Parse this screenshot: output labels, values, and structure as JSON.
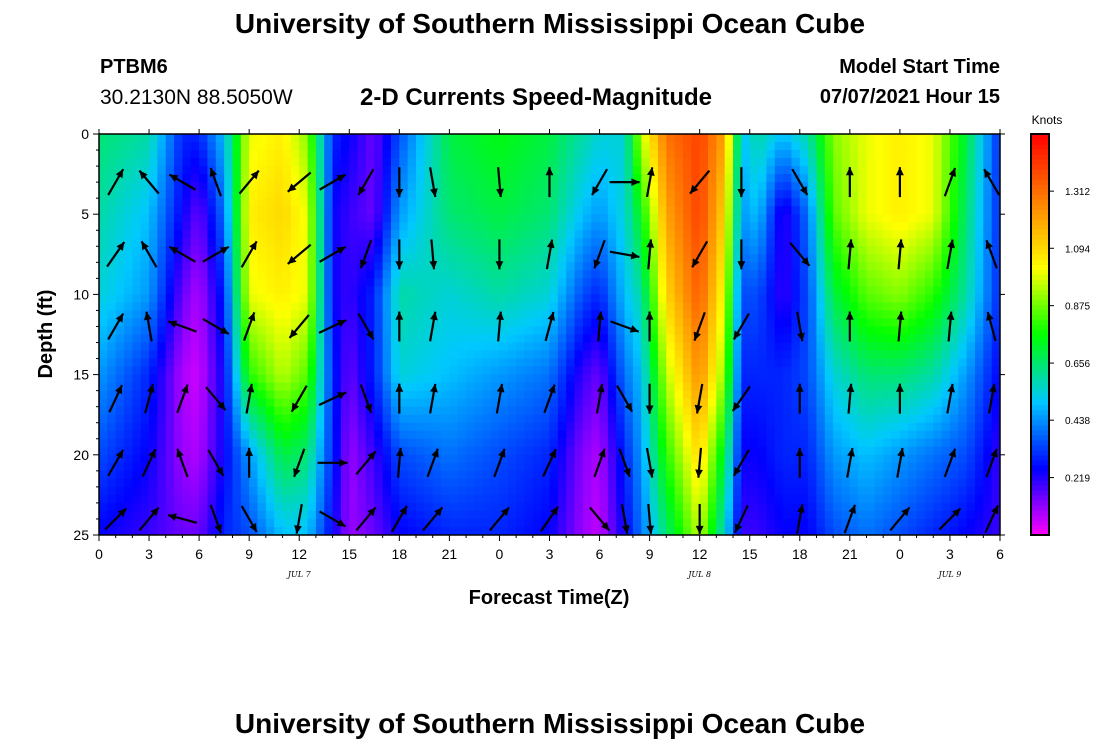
{
  "header": {
    "title": "University of Southern Mississippi Ocean Cube",
    "station_name": "PTBM6",
    "station_coords": "30.2130N  88.5050W",
    "plot_title": "2-D Currents Speed-Magnitude",
    "start_label": "Model Start Time",
    "start_value": "07/07/2021 Hour 15"
  },
  "footer": {
    "title": "University of Southern Mississippi Ocean Cube"
  },
  "chart_data": {
    "type": "heatmap",
    "xlabel": "Forecast Time(Z)",
    "ylabel": "Depth (ft)",
    "xlim": [
      0,
      54
    ],
    "ylim": [
      0,
      25
    ],
    "x_ticks": [
      0,
      3,
      6,
      9,
      12,
      15,
      18,
      21,
      24,
      27,
      30,
      33,
      36,
      39,
      42,
      45,
      48,
      51,
      54
    ],
    "x_tick_labels": [
      "0",
      "3",
      "6",
      "9",
      "12",
      "15",
      "18",
      "21",
      "0",
      "3",
      "6",
      "9",
      "12",
      "15",
      "18",
      "21",
      "0",
      "3",
      "6"
    ],
    "y_ticks": [
      0,
      5,
      10,
      15,
      20,
      25
    ],
    "y_tick_labels": [
      "0",
      "5",
      "10",
      "15",
      "20",
      "25"
    ],
    "day_labels": [
      {
        "x": 12,
        "text": "JUL 7"
      },
      {
        "x": 36,
        "text": "JUL 8"
      },
      {
        "x": 51,
        "text": "JUL 9"
      }
    ],
    "colorbar": {
      "title": "Knots",
      "min": 0,
      "max": 1.53,
      "ticks": [
        0.219,
        0.438,
        0.656,
        0.875,
        1.094,
        1.312
      ],
      "tick_labels": [
        "0.219",
        "0.438",
        "0.656",
        "0.875",
        "1.094",
        "1.312"
      ],
      "colors": [
        "#ff00ff",
        "#0000ff",
        "#00c8ff",
        "#00ff00",
        "#ffff00",
        "#ff8000",
        "#ff0000"
      ]
    },
    "speed_profiles": [
      {
        "x": 0,
        "values": [
          0.65,
          0.6,
          0.55,
          0.45,
          0.35,
          0.25
        ]
      },
      {
        "x": 3,
        "values": [
          0.6,
          0.5,
          0.45,
          0.3,
          0.25,
          0.2
        ]
      },
      {
        "x": 5,
        "values": [
          0.3,
          0.25,
          0.15,
          0.08,
          0.1,
          0.15
        ]
      },
      {
        "x": 6,
        "values": [
          0.3,
          0.15,
          0.08,
          0.05,
          0.08,
          0.15
        ]
      },
      {
        "x": 7.5,
        "values": [
          0.5,
          0.4,
          0.3,
          0.25,
          0.25,
          0.3
        ]
      },
      {
        "x": 9,
        "values": [
          1.0,
          1.05,
          1.0,
          0.8,
          0.45,
          0.35
        ]
      },
      {
        "x": 11,
        "values": [
          1.05,
          1.1,
          1.05,
          0.95,
          0.7,
          0.5
        ]
      },
      {
        "x": 12.5,
        "values": [
          0.9,
          1.0,
          1.0,
          0.85,
          0.65,
          0.5
        ]
      },
      {
        "x": 14,
        "values": [
          0.3,
          0.25,
          0.25,
          0.3,
          0.3,
          0.25
        ]
      },
      {
        "x": 15,
        "values": [
          0.25,
          0.2,
          0.2,
          0.15,
          0.1,
          0.1
        ]
      },
      {
        "x": 16.5,
        "values": [
          0.15,
          0.15,
          0.3,
          0.3,
          0.2,
          0.15
        ]
      },
      {
        "x": 18,
        "values": [
          0.35,
          0.45,
          0.6,
          0.55,
          0.35,
          0.25
        ]
      },
      {
        "x": 21,
        "values": [
          0.7,
          0.65,
          0.55,
          0.5,
          0.4,
          0.3
        ]
      },
      {
        "x": 24,
        "values": [
          0.75,
          0.7,
          0.6,
          0.45,
          0.35,
          0.3
        ]
      },
      {
        "x": 27,
        "values": [
          0.7,
          0.65,
          0.55,
          0.4,
          0.3,
          0.25
        ]
      },
      {
        "x": 29,
        "values": [
          0.6,
          0.5,
          0.35,
          0.2,
          0.12,
          0.1
        ]
      },
      {
        "x": 30,
        "values": [
          0.55,
          0.45,
          0.3,
          0.15,
          0.08,
          0.06
        ]
      },
      {
        "x": 31.5,
        "values": [
          0.55,
          0.55,
          0.5,
          0.4,
          0.3,
          0.25
        ]
      },
      {
        "x": 32.5,
        "values": [
          0.95,
          0.75,
          0.6,
          0.5,
          0.45,
          0.4
        ]
      },
      {
        "x": 34,
        "values": [
          1.3,
          1.2,
          1.1,
          0.95,
          0.8,
          0.65
        ]
      },
      {
        "x": 36,
        "values": [
          1.4,
          1.4,
          1.35,
          1.25,
          1.1,
          0.95
        ]
      },
      {
        "x": 37.5,
        "values": [
          1.2,
          1.1,
          1.0,
          0.9,
          0.7,
          0.55
        ]
      },
      {
        "x": 38.5,
        "values": [
          0.5,
          0.45,
          0.35,
          0.3,
          0.25,
          0.2
        ]
      },
      {
        "x": 39.5,
        "values": [
          0.6,
          0.5,
          0.35,
          0.3,
          0.25,
          0.2
        ]
      },
      {
        "x": 41,
        "values": [
          0.5,
          0.2,
          0.2,
          0.3,
          0.3,
          0.25
        ]
      },
      {
        "x": 42.5,
        "values": [
          0.6,
          0.4,
          0.35,
          0.35,
          0.3,
          0.25
        ]
      },
      {
        "x": 44,
        "values": [
          0.9,
          0.85,
          0.7,
          0.55,
          0.45,
          0.35
        ]
      },
      {
        "x": 46,
        "values": [
          1.0,
          1.0,
          0.85,
          0.65,
          0.5,
          0.4
        ]
      },
      {
        "x": 48,
        "values": [
          1.05,
          1.05,
          0.9,
          0.65,
          0.45,
          0.35
        ]
      },
      {
        "x": 50,
        "values": [
          1.0,
          1.0,
          0.8,
          0.6,
          0.4,
          0.3
        ]
      },
      {
        "x": 52,
        "values": [
          0.7,
          0.65,
          0.6,
          0.45,
          0.35,
          0.25
        ]
      },
      {
        "x": 54,
        "values": [
          0.3,
          0.3,
          0.3,
          0.25,
          0.2,
          0.2
        ]
      }
    ],
    "current_vectors": {
      "columns": [
        {
          "x": 1,
          "dirs": [
            30,
            35,
            30,
            25,
            30,
            45
          ]
        },
        {
          "x": 3,
          "dirs": [
            -40,
            -30,
            -10,
            15,
            25,
            40
          ]
        },
        {
          "x": 5,
          "dirs": [
            -60,
            -60,
            -70,
            20,
            -20,
            -75
          ]
        },
        {
          "x": 7,
          "dirs": [
            -20,
            60,
            120,
            140,
            150,
            160
          ]
        },
        {
          "x": 9,
          "dirs": [
            40,
            30,
            20,
            10,
            0,
            150
          ]
        },
        {
          "x": 12,
          "dirs": [
            -130,
            -130,
            -140,
            -150,
            -160,
            -170
          ]
        },
        {
          "x": 14,
          "dirs": [
            60,
            60,
            65,
            65,
            90,
            120
          ]
        },
        {
          "x": 16,
          "dirs": [
            -150,
            -160,
            150,
            160,
            40,
            40
          ]
        },
        {
          "x": 18,
          "dirs": [
            180,
            180,
            0,
            0,
            5,
            30
          ]
        },
        {
          "x": 20,
          "dirs": [
            170,
            175,
            10,
            10,
            20,
            40
          ]
        },
        {
          "x": 24,
          "dirs": [
            175,
            180,
            5,
            10,
            20,
            40
          ]
        },
        {
          "x": 27,
          "dirs": [
            0,
            10,
            15,
            20,
            25,
            35
          ]
        },
        {
          "x": 30,
          "dirs": [
            -150,
            -160,
            5,
            10,
            20,
            140
          ]
        },
        {
          "x": 31.5,
          "dirs": [
            90,
            100,
            110,
            150,
            160,
            170
          ]
        },
        {
          "x": 33,
          "dirs": [
            10,
            5,
            0,
            180,
            170,
            175
          ]
        },
        {
          "x": 36,
          "dirs": [
            -140,
            -150,
            -160,
            -170,
            -175,
            180
          ]
        },
        {
          "x": 38.5,
          "dirs": [
            180,
            180,
            -150,
            -145,
            -150,
            -155
          ]
        },
        {
          "x": 42,
          "dirs": [
            150,
            140,
            170,
            0,
            0,
            10
          ]
        },
        {
          "x": 45,
          "dirs": [
            0,
            5,
            0,
            5,
            10,
            20
          ]
        },
        {
          "x": 48,
          "dirs": [
            0,
            5,
            5,
            0,
            10,
            40
          ]
        },
        {
          "x": 51,
          "dirs": [
            20,
            10,
            5,
            10,
            20,
            45
          ]
        },
        {
          "x": 53.5,
          "dirs": [
            -30,
            -20,
            -15,
            10,
            20,
            25
          ]
        }
      ],
      "depths": [
        3,
        7.5,
        12,
        16.5,
        20.5,
        24
      ]
    }
  }
}
